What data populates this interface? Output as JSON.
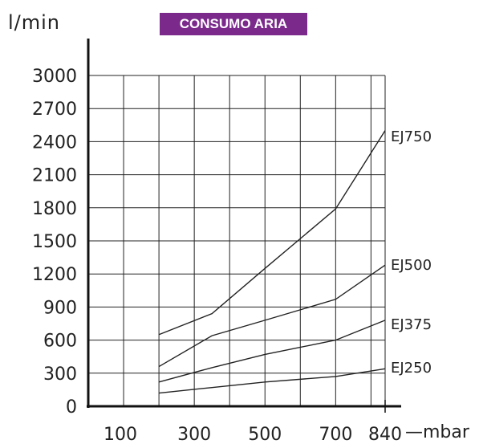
{
  "chart_data": {
    "type": "line",
    "title": "CONSUMO ARIA",
    "ylabel": "l/min",
    "xlabel": "—mbar",
    "ylim": [
      0,
      3000
    ],
    "xlim": [
      0,
      840
    ],
    "yticks": [
      0,
      300,
      600,
      900,
      1200,
      1500,
      1800,
      2100,
      2400,
      2700,
      3000
    ],
    "xticks": [
      100,
      300,
      500,
      700,
      840
    ],
    "grid": true,
    "series": [
      {
        "name": "EJ750",
        "points": [
          [
            200,
            650
          ],
          [
            350,
            840
          ],
          [
            500,
            1250
          ],
          [
            700,
            1790
          ],
          [
            840,
            2500
          ]
        ]
      },
      {
        "name": "EJ500",
        "points": [
          [
            200,
            360
          ],
          [
            350,
            640
          ],
          [
            500,
            780
          ],
          [
            700,
            970
          ],
          [
            840,
            1280
          ]
        ]
      },
      {
        "name": "EJ375",
        "points": [
          [
            200,
            220
          ],
          [
            350,
            350
          ],
          [
            500,
            470
          ],
          [
            700,
            600
          ],
          [
            840,
            780
          ]
        ]
      },
      {
        "name": "EJ250",
        "points": [
          [
            200,
            120
          ],
          [
            350,
            170
          ],
          [
            500,
            220
          ],
          [
            700,
            270
          ],
          [
            840,
            340
          ]
        ]
      }
    ]
  }
}
